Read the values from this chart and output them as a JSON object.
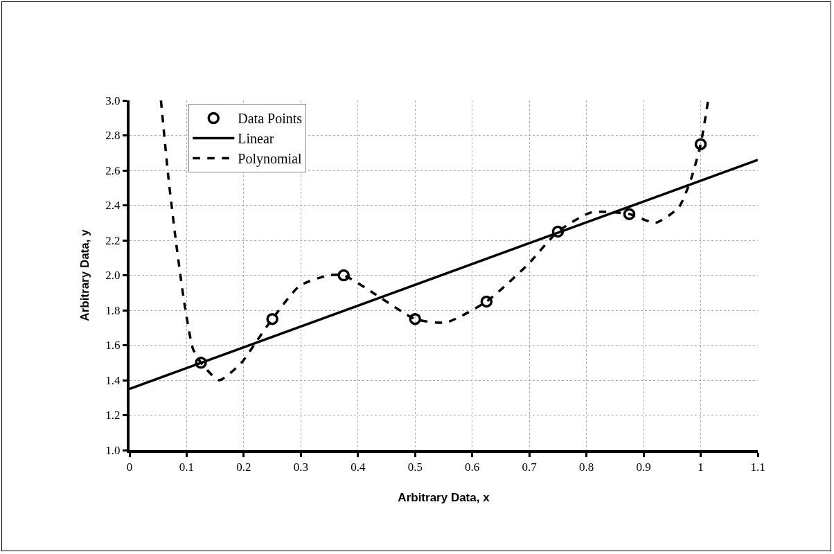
{
  "chart_data": {
    "type": "scatter",
    "xlabel": "Arbitrary Data, x",
    "ylabel": "Arbitrary Data, y",
    "xlim": [
      0,
      1.1
    ],
    "xticks": [
      0,
      0.1,
      0.2,
      0.3,
      0.4,
      0.5,
      0.6,
      0.7,
      0.8,
      0.9,
      1,
      1.1
    ],
    "ylim": [
      1.0,
      3.0
    ],
    "yticks": [
      {
        "value": 1,
        "label": "1.0"
      },
      1.2,
      1.4,
      1.6,
      1.8,
      {
        "value": 2,
        "label": "2.0"
      },
      2.2,
      2.4,
      2.6,
      2.8,
      {
        "value": 3,
        "label": "3.0"
      }
    ],
    "grid": true,
    "legend": "top left",
    "series": [
      {
        "name": "Data Points",
        "marker": "circle",
        "color": "#000000",
        "x": [
          0.125,
          0.25,
          0.375,
          0.5,
          0.625,
          0.75,
          0.875,
          1.0
        ],
        "values": [
          1.5,
          1.75,
          2.0,
          1.75,
          1.85,
          2.25,
          2.35,
          2.75
        ]
      },
      {
        "name": "Linear",
        "type": "line",
        "marker": "none",
        "line_style": "solid",
        "color": "#000000",
        "x": [
          0,
          1.1
        ],
        "values": [
          1.35,
          2.66
        ]
      },
      {
        "name": "Polynomial",
        "type": "line",
        "marker": "none",
        "line_style": "dashed",
        "color": "#000000",
        "x": [
          0.055,
          0.068,
          0.081,
          0.096,
          0.111,
          0.125,
          0.157,
          0.196,
          0.224,
          0.25,
          0.298,
          0.349,
          0.375,
          0.431,
          0.5,
          0.554,
          0.625,
          0.697,
          0.75,
          0.809,
          0.875,
          0.921,
          0.962,
          0.983,
          1.0,
          1.013
        ],
        "values": [
          3.0,
          2.56,
          2.2,
          1.84,
          1.58,
          1.5,
          1.4,
          1.5,
          1.63,
          1.75,
          1.94,
          2.0,
          2.0,
          1.89,
          1.75,
          1.73,
          1.85,
          2.06,
          2.25,
          2.36,
          2.35,
          2.3,
          2.39,
          2.55,
          2.75,
          3.0
        ]
      }
    ]
  }
}
